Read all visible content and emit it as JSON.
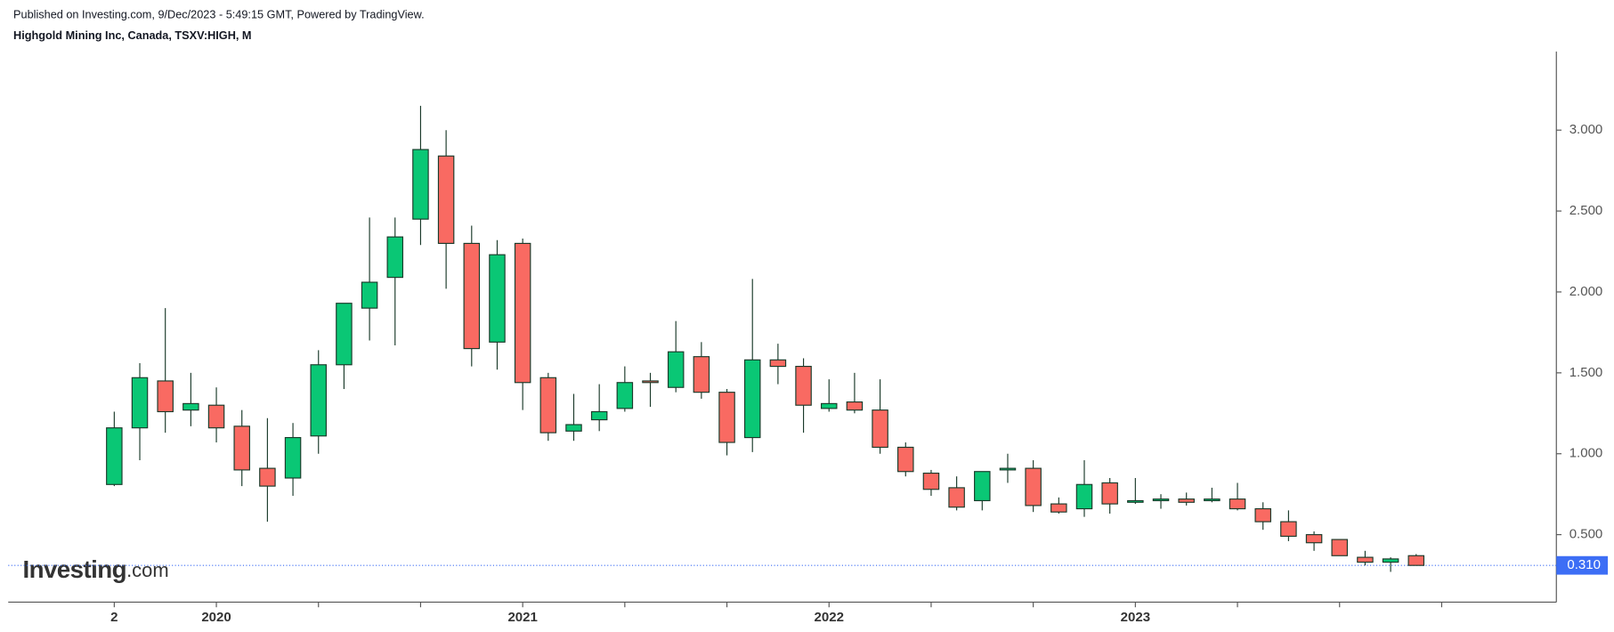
{
  "header": {
    "published": "Published on Investing.com, 9/Dec/2023 - 5:49:15 GMT, Powered by TradingView.",
    "instrument": "Highgold Mining Inc, Canada, TSXV:HIGH, M"
  },
  "watermark": {
    "brand": "Investing",
    "suffix": ".com"
  },
  "chart_data": {
    "type": "candlestick",
    "categories": [
      "2",
      null,
      null,
      null,
      "2020",
      null,
      null,
      null,
      null,
      null,
      null,
      null,
      null,
      null,
      null,
      null,
      "2021",
      null,
      null,
      null,
      null,
      null,
      null,
      null,
      null,
      null,
      null,
      null,
      "2022",
      null,
      null,
      null,
      null,
      null,
      null,
      null,
      null,
      null,
      null,
      null,
      "2023",
      null,
      null,
      null,
      null,
      null,
      null,
      null,
      null,
      null,
      null,
      null
    ],
    "open": [
      0.81,
      1.16,
      1.45,
      1.27,
      1.3,
      1.17,
      0.91,
      0.85,
      1.11,
      1.55,
      1.9,
      2.09,
      2.45,
      2.84,
      2.3,
      1.69,
      2.3,
      1.47,
      1.14,
      1.21,
      1.28,
      1.45,
      1.41,
      1.6,
      1.38,
      1.1,
      1.58,
      1.54,
      1.28,
      1.32,
      1.27,
      1.04,
      0.88,
      0.79,
      0.71,
      0.9,
      0.91,
      0.69,
      0.66,
      0.82,
      0.7,
      0.71,
      0.72,
      0.71,
      0.72,
      0.66,
      0.58,
      0.5,
      0.47,
      0.36,
      0.33,
      0.37
    ],
    "high": [
      1.26,
      1.56,
      1.9,
      1.5,
      1.41,
      1.27,
      1.22,
      1.19,
      1.64,
      1.93,
      2.46,
      2.46,
      3.15,
      3.0,
      2.41,
      2.32,
      2.33,
      1.5,
      1.37,
      1.43,
      1.54,
      1.5,
      1.82,
      1.69,
      1.4,
      2.08,
      1.68,
      1.59,
      1.46,
      1.5,
      1.46,
      1.07,
      0.9,
      0.86,
      0.89,
      1.0,
      0.96,
      0.73,
      0.96,
      0.85,
      0.85,
      0.75,
      0.76,
      0.79,
      0.82,
      0.7,
      0.65,
      0.52,
      0.47,
      0.4,
      0.36,
      0.38
    ],
    "low": [
      0.8,
      0.96,
      1.13,
      1.17,
      1.07,
      0.8,
      0.58,
      0.74,
      1.0,
      1.4,
      1.7,
      1.67,
      2.29,
      2.02,
      1.54,
      1.52,
      1.27,
      1.08,
      1.08,
      1.14,
      1.26,
      1.29,
      1.38,
      1.34,
      0.99,
      1.01,
      1.43,
      1.13,
      1.26,
      1.25,
      1.0,
      0.86,
      0.74,
      0.65,
      0.65,
      0.82,
      0.64,
      0.63,
      0.61,
      0.63,
      0.69,
      0.66,
      0.68,
      0.7,
      0.65,
      0.53,
      0.46,
      0.4,
      0.37,
      0.31,
      0.27,
      0.31
    ],
    "close": [
      1.16,
      1.47,
      1.26,
      1.31,
      1.16,
      0.9,
      0.8,
      1.1,
      1.55,
      1.93,
      2.06,
      2.34,
      2.88,
      2.3,
      1.65,
      2.23,
      1.44,
      1.13,
      1.18,
      1.26,
      1.44,
      1.44,
      1.63,
      1.38,
      1.07,
      1.58,
      1.54,
      1.3,
      1.31,
      1.27,
      1.04,
      0.89,
      0.78,
      0.67,
      0.89,
      0.91,
      0.68,
      0.64,
      0.81,
      0.69,
      0.71,
      0.72,
      0.7,
      0.72,
      0.66,
      0.58,
      0.49,
      0.45,
      0.37,
      0.33,
      0.35,
      0.31
    ],
    "up_color": "#0ac775",
    "down_color": "#f96a62",
    "wick_color": "#1a3a2a",
    "ylim": [
      0.083,
      3.486
    ],
    "yticks": [
      {
        "value": 0.5,
        "label": "0.500"
      },
      {
        "value": 1,
        "label": "1.000"
      },
      {
        "value": 1.5,
        "label": "1.500"
      },
      {
        "value": 2,
        "label": "2.000"
      },
      {
        "value": 2.5,
        "label": "2.500"
      },
      {
        "value": 3,
        "label": "3.000"
      }
    ],
    "last_price": {
      "value": 0.31,
      "label": "0.310"
    },
    "last_price_color": "#3d6ef5"
  }
}
